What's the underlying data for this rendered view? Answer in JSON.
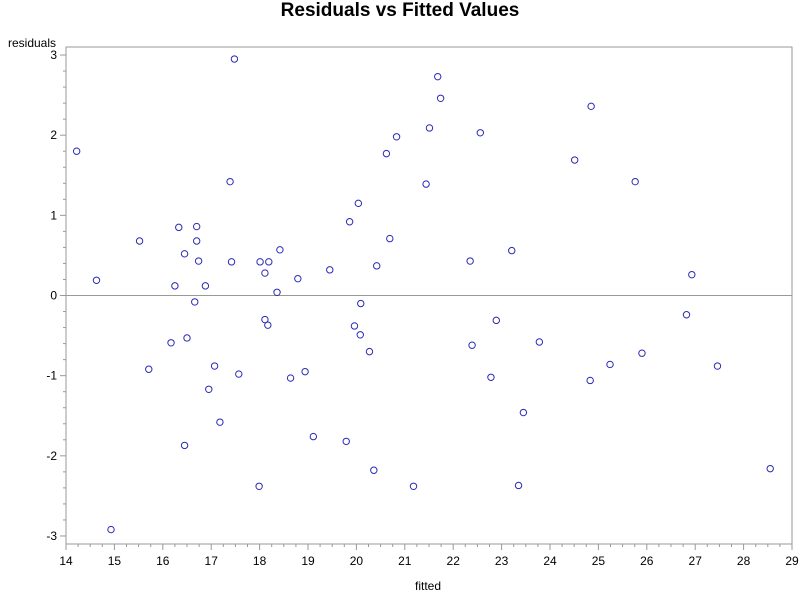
{
  "chart_data": {
    "type": "scatter",
    "title": "Residuals vs Fitted Values",
    "xlabel": "fitted",
    "ylabel": "residuals",
    "xlim": [
      14,
      29
    ],
    "ylim": [
      -3.1,
      3.1
    ],
    "xticks": [
      14,
      15,
      16,
      17,
      18,
      19,
      20,
      21,
      22,
      23,
      24,
      25,
      26,
      27,
      28,
      29
    ],
    "yticks": [
      -3,
      -2,
      -1,
      0,
      1,
      2,
      3
    ],
    "reference_line_y": 0,
    "grid": false,
    "colors": {
      "marker": "#2b2bb5",
      "reference": "#999999",
      "frame": "#999999",
      "text": "#000000"
    },
    "series": [
      {
        "points": [
          [
            14.22,
            1.8
          ],
          [
            14.63,
            0.19
          ],
          [
            14.93,
            -2.92
          ],
          [
            15.52,
            0.68
          ],
          [
            15.71,
            -0.92
          ],
          [
            16.17,
            -0.59
          ],
          [
            16.25,
            0.12
          ],
          [
            16.33,
            0.85
          ],
          [
            16.45,
            0.52
          ],
          [
            16.45,
            -1.87
          ],
          [
            16.5,
            -0.53
          ],
          [
            16.66,
            -0.08
          ],
          [
            16.7,
            0.86
          ],
          [
            16.7,
            0.68
          ],
          [
            16.74,
            0.43
          ],
          [
            16.88,
            0.12
          ],
          [
            16.95,
            -1.17
          ],
          [
            17.07,
            -0.88
          ],
          [
            17.18,
            -1.58
          ],
          [
            17.39,
            1.42
          ],
          [
            17.42,
            0.42
          ],
          [
            17.48,
            2.95
          ],
          [
            17.57,
            -0.98
          ],
          [
            17.99,
            -2.38
          ],
          [
            18.01,
            0.42
          ],
          [
            18.11,
            -0.3
          ],
          [
            18.11,
            0.28
          ],
          [
            18.17,
            -0.37
          ],
          [
            18.19,
            0.42
          ],
          [
            18.36,
            0.04
          ],
          [
            18.42,
            0.57
          ],
          [
            18.64,
            -1.03
          ],
          [
            18.79,
            0.21
          ],
          [
            18.94,
            -0.95
          ],
          [
            19.11,
            -1.76
          ],
          [
            19.45,
            0.32
          ],
          [
            19.79,
            -1.82
          ],
          [
            19.86,
            0.92
          ],
          [
            19.96,
            -0.38
          ],
          [
            20.04,
            1.15
          ],
          [
            20.08,
            -0.49
          ],
          [
            20.09,
            -0.1
          ],
          [
            20.27,
            -0.7
          ],
          [
            20.36,
            -2.18
          ],
          [
            20.42,
            0.37
          ],
          [
            20.62,
            1.77
          ],
          [
            20.69,
            0.71
          ],
          [
            20.83,
            1.98
          ],
          [
            21.18,
            -2.38
          ],
          [
            21.44,
            1.39
          ],
          [
            21.51,
            2.09
          ],
          [
            21.68,
            2.73
          ],
          [
            21.74,
            2.46
          ],
          [
            22.35,
            0.43
          ],
          [
            22.39,
            -0.62
          ],
          [
            22.56,
            2.03
          ],
          [
            22.78,
            -1.02
          ],
          [
            22.89,
            -0.31
          ],
          [
            23.21,
            0.56
          ],
          [
            23.35,
            -2.37
          ],
          [
            23.45,
            -1.46
          ],
          [
            23.78,
            -0.58
          ],
          [
            24.51,
            1.69
          ],
          [
            24.83,
            -1.06
          ],
          [
            24.85,
            2.36
          ],
          [
            25.24,
            -0.86
          ],
          [
            25.76,
            1.42
          ],
          [
            25.9,
            -0.72
          ],
          [
            26.82,
            -0.24
          ],
          [
            26.93,
            0.26
          ],
          [
            27.46,
            -0.88
          ],
          [
            28.55,
            -2.16
          ]
        ]
      }
    ]
  }
}
